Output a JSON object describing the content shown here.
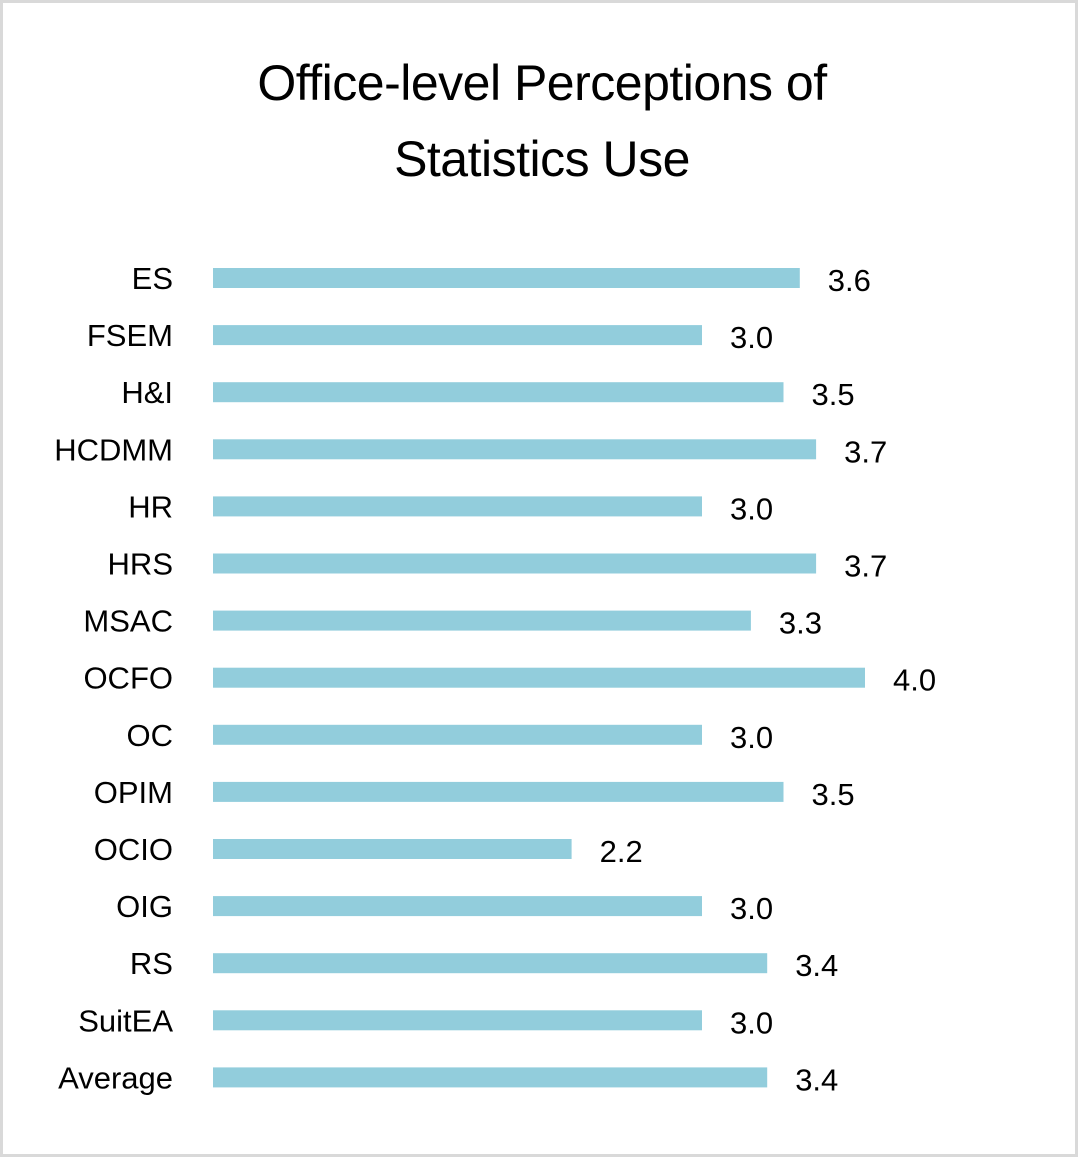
{
  "chart_data": {
    "type": "bar",
    "orientation": "horizontal",
    "title_lines": [
      "Office-level Perceptions of",
      "Statistics Use"
    ],
    "categories": [
      "ES",
      "FSEM",
      "H&I",
      "HCDMM",
      "HR",
      "HRS",
      "MSAC",
      "OCFO",
      "OC",
      "OPIM",
      "OCIO",
      "OIG",
      "RS",
      "SuitEA",
      "Average"
    ],
    "values": [
      3.6,
      3.0,
      3.5,
      3.7,
      3.0,
      3.7,
      3.3,
      4.0,
      3.0,
      3.5,
      2.2,
      3.0,
      3.4,
      3.0,
      3.4
    ],
    "value_labels": [
      "3.6",
      "3.0",
      "3.5",
      "3.7",
      "3.0",
      "3.7",
      "3.3",
      "4.0",
      "3.0",
      "3.5",
      "2.2",
      "3.0",
      "3.4",
      "3.0",
      "3.4"
    ],
    "xlabel": "",
    "ylabel": "",
    "xlim": [
      0,
      4
    ],
    "grid": false,
    "legend": "none",
    "bar_color": "#92cddc"
  }
}
